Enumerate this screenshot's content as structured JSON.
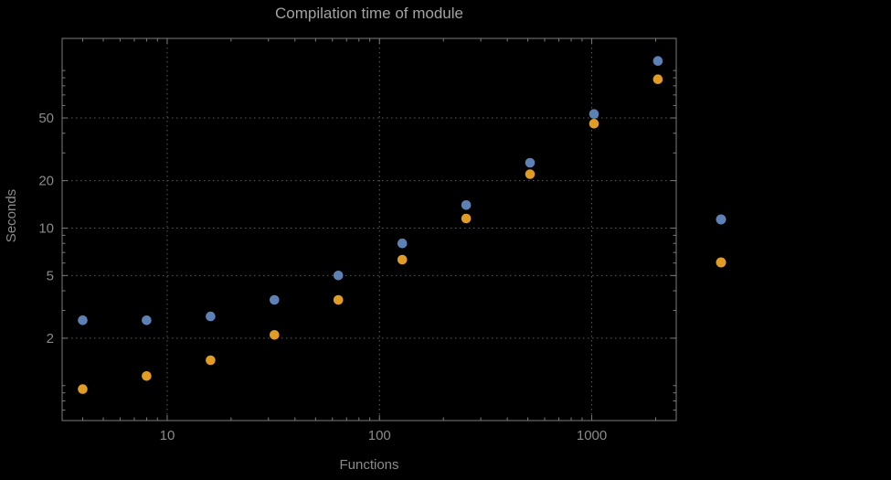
{
  "chart_data": {
    "type": "scatter",
    "title": "Compilation time of module",
    "xlabel": "Functions",
    "ylabel": "Seconds",
    "x_scale": "log",
    "y_scale": "log",
    "xlim": [
      3.2,
      2500
    ],
    "ylim": [
      0.6,
      160
    ],
    "x_ticks": [
      10,
      100,
      1000
    ],
    "y_ticks": [
      2,
      5,
      10,
      20,
      50
    ],
    "grid": true,
    "legend": {
      "position": "right-outside",
      "labels_visible": false
    },
    "series": [
      {
        "name": "blue",
        "color": "#5e81b5",
        "points": [
          [
            4,
            2.6
          ],
          [
            8,
            2.6
          ],
          [
            16,
            2.75
          ],
          [
            32,
            3.5
          ],
          [
            64,
            5.0
          ],
          [
            128,
            8.0
          ],
          [
            256,
            14
          ],
          [
            512,
            26
          ],
          [
            1024,
            53
          ],
          [
            2048,
            115
          ]
        ]
      },
      {
        "name": "orange",
        "color": "#e19c24",
        "points": [
          [
            4,
            0.95
          ],
          [
            8,
            1.15
          ],
          [
            16,
            1.45
          ],
          [
            32,
            2.1
          ],
          [
            64,
            3.5
          ],
          [
            128,
            6.3
          ],
          [
            256,
            11.5
          ],
          [
            512,
            22
          ],
          [
            1024,
            46
          ],
          [
            2048,
            88
          ]
        ]
      }
    ],
    "colors": {
      "grid": "#5c5c5c",
      "frame": "#7b7b7b",
      "label": "#8a8a8a",
      "background": "#000000"
    }
  }
}
